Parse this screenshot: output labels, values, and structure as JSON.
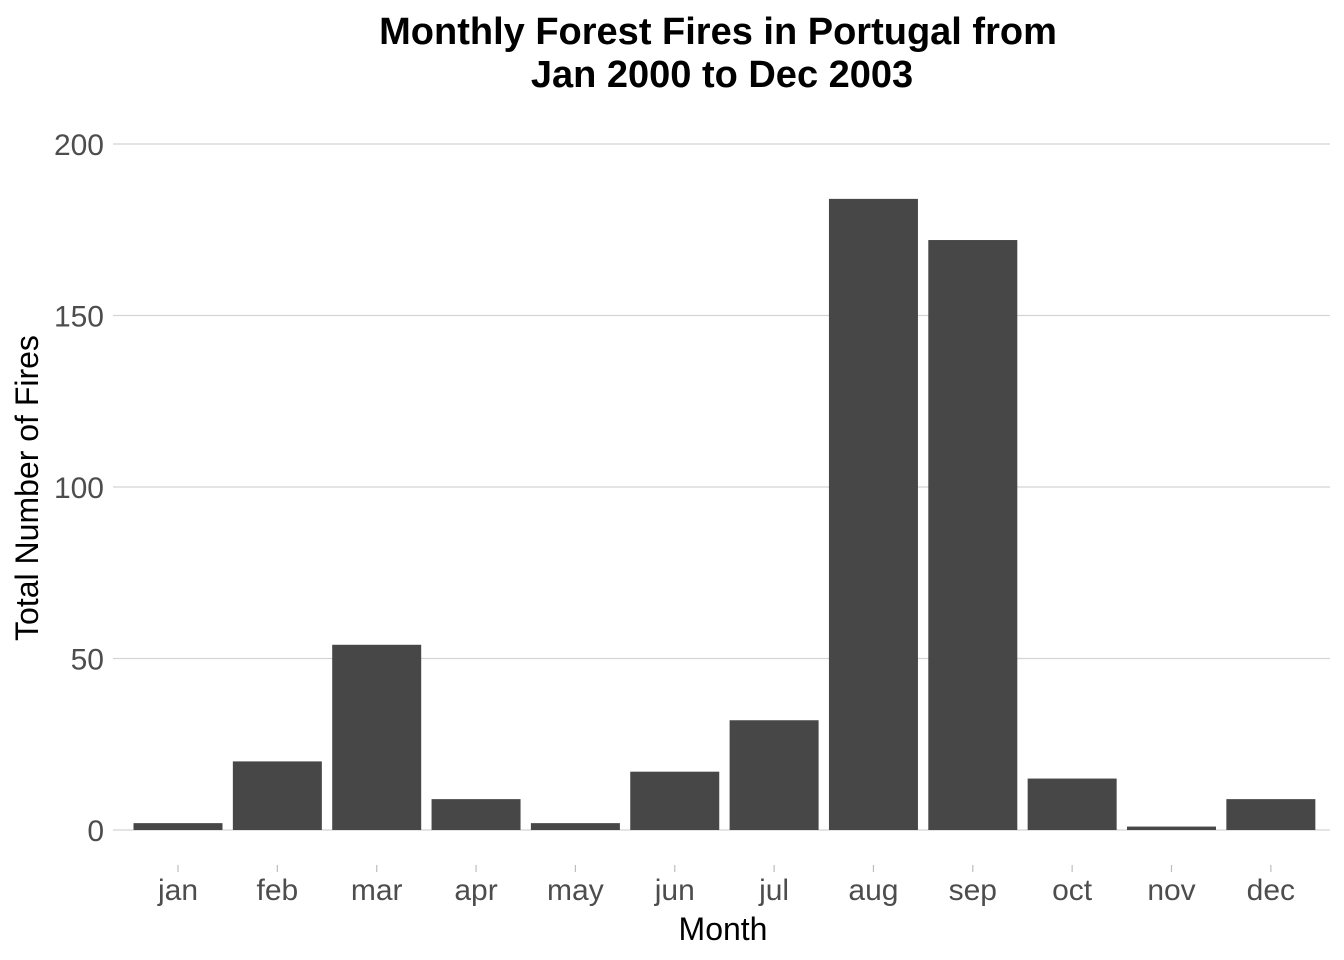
{
  "chart_data": {
    "type": "bar",
    "title_lines": [
      "Monthly Forest Fires in Portugal from",
      "Jan 2000 to Dec 2003"
    ],
    "xlabel": "Month",
    "ylabel": "Total Number of Fires",
    "categories": [
      "jan",
      "feb",
      "mar",
      "apr",
      "may",
      "jun",
      "jul",
      "aug",
      "sep",
      "oct",
      "nov",
      "dec"
    ],
    "values": [
      2,
      20,
      54,
      9,
      2,
      17,
      32,
      184,
      172,
      15,
      1,
      9
    ],
    "ylim": [
      0,
      200
    ],
    "yticks": [
      0,
      50,
      100,
      150,
      200
    ],
    "grid": true,
    "bar_color": "#474747",
    "grid_color": "#d4d4d4"
  }
}
